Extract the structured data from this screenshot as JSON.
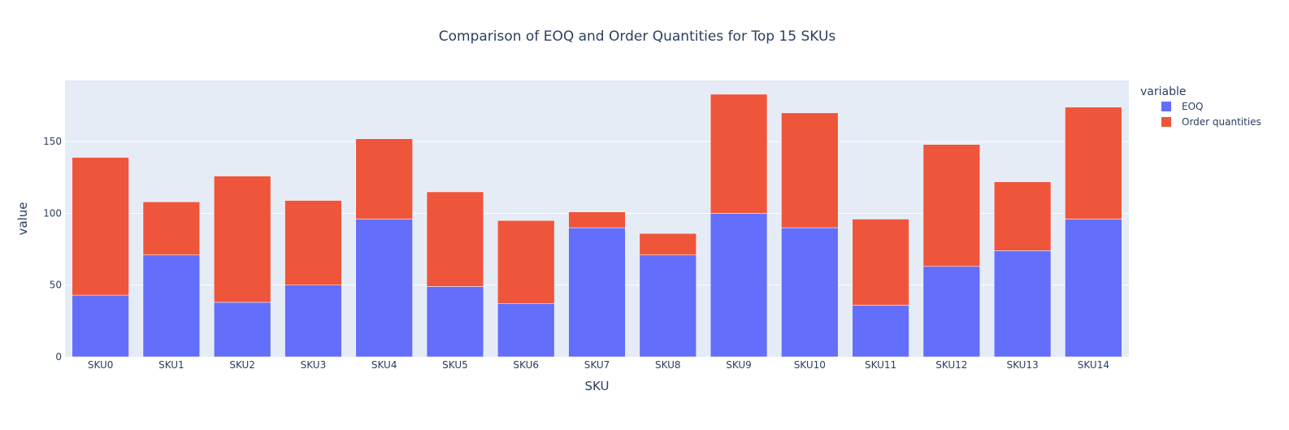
{
  "chart_data": {
    "type": "bar",
    "barmode": "stack",
    "title": "Comparison of EOQ and Order Quantities for Top 15 SKUs",
    "xlabel": "SKU",
    "ylabel": "value",
    "categories": [
      "SKU0",
      "SKU1",
      "SKU2",
      "SKU3",
      "SKU4",
      "SKU5",
      "SKU6",
      "SKU7",
      "SKU8",
      "SKU9",
      "SKU10",
      "SKU11",
      "SKU12",
      "SKU13",
      "SKU14"
    ],
    "series": [
      {
        "name": "EOQ",
        "color": "#636efa",
        "values": [
          43,
          71,
          38,
          50,
          96,
          49,
          37,
          90,
          71,
          100,
          90,
          36,
          63,
          74,
          96
        ]
      },
      {
        "name": "Order quantities",
        "color": "#ef553b",
        "values": [
          96,
          37,
          88,
          59,
          56,
          66,
          58,
          11,
          15,
          83,
          80,
          60,
          85,
          48,
          78
        ]
      }
    ],
    "ylim": [
      0,
      192.6
    ],
    "yticks": [
      0,
      50,
      100,
      150
    ],
    "grid": true,
    "legend": {
      "title": "variable",
      "position": "top-right"
    },
    "plot_background": "#e5ecf6"
  }
}
